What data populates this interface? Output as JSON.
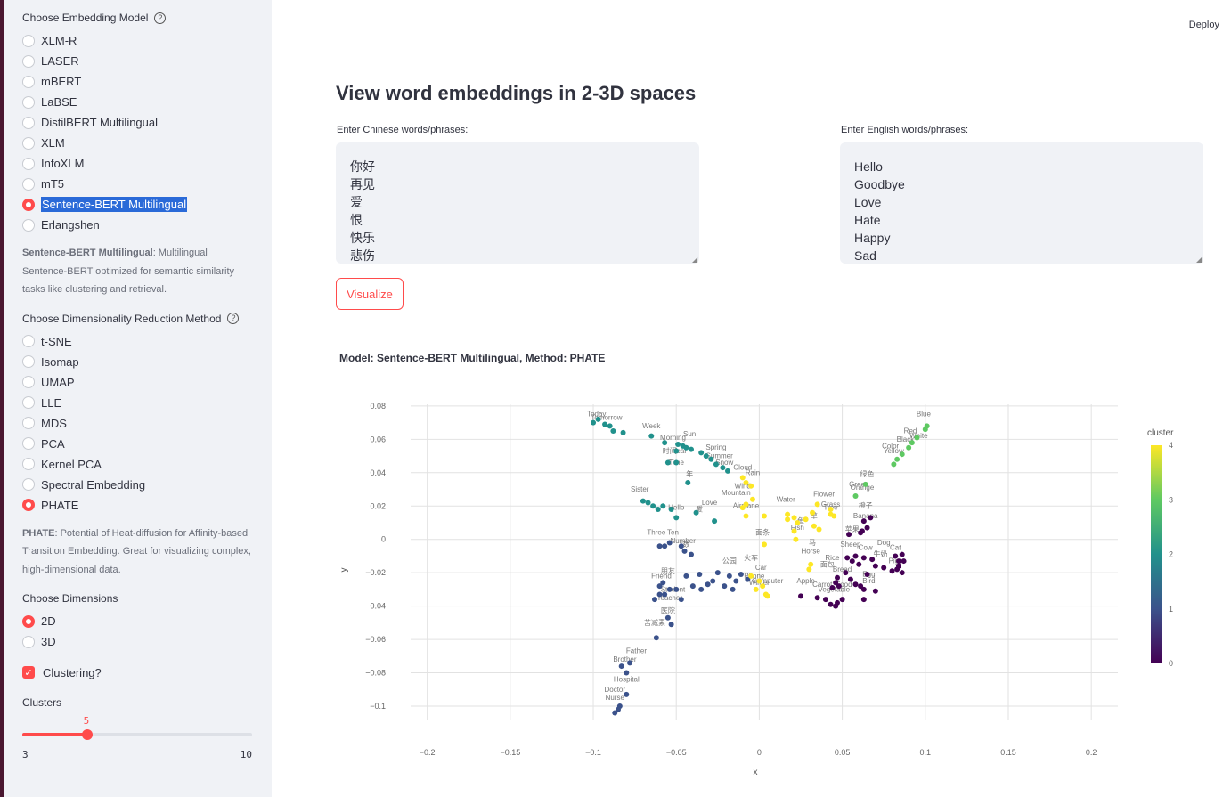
{
  "sidebar": {
    "model_label": "Choose Embedding Model",
    "models": [
      "XLM-R",
      "LASER",
      "mBERT",
      "LaBSE",
      "DistilBERT Multilingual",
      "XLM",
      "InfoXLM",
      "mT5",
      "Sentence-BERT Multilingual",
      "Erlangshen"
    ],
    "selected_model": "Sentence-BERT Multilingual",
    "model_desc_title": "Sentence-BERT Multilingual",
    "model_desc_text": ": Multilingual Sentence-BERT optimized for semantic similarity tasks like clustering and retrieval.",
    "method_label": "Choose Dimensionality Reduction Method",
    "methods": [
      "t-SNE",
      "Isomap",
      "UMAP",
      "LLE",
      "MDS",
      "PCA",
      "Kernel PCA",
      "Spectral Embedding",
      "PHATE"
    ],
    "selected_method": "PHATE",
    "method_desc_title": "PHATE",
    "method_desc_text": ": Potential of Heat-diffusion for Affinity-based Transition Embedding. Great for visualizing complex, high-dimensional data.",
    "dims_label": "Choose Dimensions",
    "dims": [
      "2D",
      "3D"
    ],
    "selected_dim": "2D",
    "clustering_label": "Clustering?",
    "clustering_checked": true,
    "clusters_label": "Clusters",
    "clusters_value": "5",
    "clusters_min": "3",
    "clusters_max": "10",
    "clusters_fraction": 0.2857
  },
  "header": {
    "deploy_label": "Deploy"
  },
  "main": {
    "title": "View word embeddings in 2-3D spaces",
    "chinese_label": "Enter Chinese words/phrases:",
    "chinese_lines": [
      "你好",
      "再见",
      "爱",
      "恨",
      "快乐",
      "悲伤"
    ],
    "english_label": "Enter English words/phrases:",
    "english_lines": [
      "Hello",
      "Goodbye",
      "Love",
      "Hate",
      "Happy",
      "Sad"
    ],
    "visualize_label": "Visualize",
    "chart_title": "Model: Sentence-BERT Multilingual, Method: PHATE"
  },
  "colors": {
    "accent": "#ff4b4b",
    "selection": "#2a6ad8"
  },
  "chart_data": {
    "type": "scatter",
    "xlabel": "x",
    "ylabel": "y",
    "xlim": [
      -0.21,
      0.216
    ],
    "ylim": [
      -0.108,
      0.081
    ],
    "xticks": [
      -0.2,
      -0.15,
      -0.1,
      -0.05,
      0,
      0.05,
      0.1,
      0.15,
      0.2
    ],
    "xtick_labels": [
      "−0.2",
      "−0.15",
      "−0.1",
      "−0.05",
      "0",
      "0.05",
      "0.1",
      "0.15",
      "0.2"
    ],
    "yticks": [
      0.08,
      0.06,
      0.04,
      0.02,
      0,
      -0.02,
      -0.04,
      -0.06,
      -0.08,
      -0.1
    ],
    "ytick_labels": [
      "0.08",
      "0.06",
      "0.04",
      "0.02",
      "0",
      "−0.02",
      "−0.04",
      "−0.06",
      "−0.08",
      "−0.1"
    ],
    "grid": true,
    "colorbar": {
      "title": "cluster",
      "min": 0,
      "max": 4,
      "ticks": [
        "4",
        "3",
        "2",
        "1",
        "0"
      ]
    },
    "clusters": [
      {
        "cluster": 0,
        "color": "#440154",
        "points": [
          [
            0.025,
            -0.034
          ],
          [
            0.035,
            -0.035
          ],
          [
            0.04,
            -0.036
          ],
          [
            0.043,
            -0.039
          ],
          [
            0.046,
            -0.04
          ],
          [
            0.047,
            -0.038
          ],
          [
            0.05,
            -0.036
          ],
          [
            0.044,
            -0.029
          ],
          [
            0.048,
            -0.028
          ],
          [
            0.046,
            -0.026
          ],
          [
            0.052,
            -0.02
          ],
          [
            0.047,
            -0.023
          ],
          [
            0.055,
            -0.024
          ],
          [
            0.058,
            -0.027
          ],
          [
            0.061,
            -0.028
          ],
          [
            0.063,
            -0.03
          ],
          [
            0.063,
            -0.036
          ],
          [
            0.07,
            -0.031
          ],
          [
            0.065,
            -0.021
          ],
          [
            0.06,
            -0.015
          ],
          [
            0.056,
            -0.013
          ],
          [
            0.053,
            -0.011
          ],
          [
            0.058,
            -0.01
          ],
          [
            0.063,
            -0.011
          ],
          [
            0.068,
            -0.012
          ],
          [
            0.07,
            -0.016
          ],
          [
            0.075,
            -0.017
          ],
          [
            0.08,
            -0.019
          ],
          [
            0.084,
            -0.016
          ],
          [
            0.082,
            -0.01
          ],
          [
            0.086,
            -0.009
          ],
          [
            0.083,
            -0.018
          ],
          [
            0.086,
            -0.02
          ],
          [
            0.084,
            -0.013
          ],
          [
            0.087,
            -0.013
          ],
          [
            0.062,
            0.005
          ],
          [
            0.065,
            0.007
          ],
          [
            0.067,
            0.013
          ],
          [
            0.063,
            0.011
          ],
          [
            0.054,
            0.003
          ],
          [
            0.061,
            0.004
          ]
        ]
      },
      {
        "cluster": 1,
        "color": "#3b528b",
        "points": [
          [
            -0.085,
            -0.102
          ],
          [
            -0.087,
            -0.104
          ],
          [
            -0.084,
            -0.1
          ],
          [
            -0.08,
            -0.093
          ],
          [
            -0.08,
            -0.08
          ],
          [
            -0.078,
            -0.074
          ],
          [
            -0.083,
            -0.076
          ],
          [
            -0.062,
            -0.059
          ],
          [
            -0.053,
            -0.051
          ],
          [
            -0.055,
            -0.047
          ],
          [
            -0.06,
            -0.033
          ],
          [
            -0.057,
            -0.033
          ],
          [
            -0.063,
            -0.036
          ],
          [
            -0.06,
            -0.028
          ],
          [
            -0.058,
            -0.026
          ],
          [
            -0.054,
            -0.03
          ],
          [
            -0.05,
            -0.03
          ],
          [
            -0.047,
            -0.036
          ],
          [
            -0.044,
            -0.022
          ],
          [
            -0.04,
            -0.028
          ],
          [
            -0.035,
            -0.03
          ],
          [
            -0.031,
            -0.027
          ],
          [
            -0.028,
            -0.025
          ],
          [
            -0.025,
            -0.02
          ],
          [
            -0.021,
            -0.028
          ],
          [
            -0.018,
            -0.022
          ],
          [
            -0.014,
            -0.025
          ],
          [
            -0.011,
            -0.021
          ],
          [
            -0.016,
            -0.03
          ],
          [
            -0.007,
            -0.024
          ],
          [
            -0.06,
            -0.004
          ],
          [
            -0.057,
            -0.004
          ],
          [
            -0.054,
            -0.002
          ],
          [
            -0.047,
            -0.004
          ],
          [
            -0.045,
            -0.007
          ],
          [
            -0.041,
            -0.009
          ],
          [
            -0.036,
            -0.021
          ]
        ]
      },
      {
        "cluster": 2,
        "color": "#21918c",
        "points": [
          [
            -0.1,
            0.07
          ],
          [
            -0.097,
            0.072
          ],
          [
            -0.093,
            0.069
          ],
          [
            -0.09,
            0.068
          ],
          [
            -0.088,
            0.065
          ],
          [
            -0.082,
            0.064
          ],
          [
            -0.065,
            0.062
          ],
          [
            -0.057,
            0.058
          ],
          [
            -0.05,
            0.053
          ],
          [
            -0.049,
            0.057
          ],
          [
            -0.046,
            0.056
          ],
          [
            -0.044,
            0.055
          ],
          [
            -0.041,
            0.054
          ],
          [
            -0.035,
            0.052
          ],
          [
            -0.032,
            0.05
          ],
          [
            -0.029,
            0.048
          ],
          [
            -0.026,
            0.045
          ],
          [
            -0.022,
            0.043
          ],
          [
            -0.019,
            0.041
          ],
          [
            -0.055,
            0.046
          ],
          [
            -0.05,
            0.046
          ],
          [
            -0.043,
            0.034
          ],
          [
            -0.07,
            0.023
          ],
          [
            -0.067,
            0.022
          ],
          [
            -0.064,
            0.02
          ],
          [
            -0.061,
            0.018
          ],
          [
            -0.058,
            0.02
          ],
          [
            -0.053,
            0.018
          ],
          [
            -0.05,
            0.013
          ],
          [
            -0.038,
            0.016
          ],
          [
            -0.027,
            0.011
          ]
        ]
      },
      {
        "cluster": 3,
        "color": "#5ec962",
        "points": [
          [
            0.081,
            0.045
          ],
          [
            0.083,
            0.048
          ],
          [
            0.086,
            0.051
          ],
          [
            0.09,
            0.055
          ],
          [
            0.092,
            0.058
          ],
          [
            0.095,
            0.061
          ],
          [
            0.1,
            0.066
          ],
          [
            0.101,
            0.068
          ],
          [
            0.064,
            0.033
          ],
          [
            0.058,
            0.026
          ]
        ]
      },
      {
        "cluster": 4,
        "color": "#fde725",
        "points": [
          [
            -0.01,
            0.037
          ],
          [
            -0.008,
            0.034
          ],
          [
            -0.005,
            0.032
          ],
          [
            -0.004,
            0.024
          ],
          [
            -0.008,
            0.021
          ],
          [
            -0.01,
            0.019
          ],
          [
            -0.008,
            0.014
          ],
          [
            0.003,
            0.014
          ],
          [
            0.017,
            0.015
          ],
          [
            0.017,
            0.012
          ],
          [
            0.021,
            0.013
          ],
          [
            0.023,
            0.01
          ],
          [
            0.028,
            0.012
          ],
          [
            0.021,
            0.005
          ],
          [
            0.033,
            0.008
          ],
          [
            0.036,
            0.006
          ],
          [
            0.032,
            0.016
          ],
          [
            0.043,
            0.015
          ],
          [
            0.045,
            0.014
          ],
          [
            0.043,
            0.018
          ],
          [
            0.035,
            0.021
          ],
          [
            0.022,
            0.0
          ],
          [
            0.003,
            -0.003
          ],
          [
            0.031,
            -0.015
          ],
          [
            0.03,
            -0.018
          ],
          [
            -0.005,
            -0.022
          ],
          [
            0.0,
            -0.025
          ],
          [
            0.002,
            -0.028
          ],
          [
            0.004,
            -0.033
          ],
          [
            0.005,
            -0.034
          ],
          [
            -0.002,
            -0.03
          ]
        ]
      }
    ],
    "labels": [
      {
        "text": "Week",
        "x": -0.065,
        "y": 0.064
      },
      {
        "text": "Year",
        "x": -0.048,
        "y": 0.049
      },
      {
        "text": "时间",
        "x": -0.054,
        "y": 0.049
      },
      {
        "text": "Time",
        "x": -0.05,
        "y": 0.042
      },
      {
        "text": "年",
        "x": -0.042,
        "y": 0.035
      },
      {
        "text": "Love",
        "x": -0.03,
        "y": 0.018
      },
      {
        "text": "爱",
        "x": -0.036,
        "y": 0.014
      },
      {
        "text": "Spring",
        "x": -0.026,
        "y": 0.051
      },
      {
        "text": "Hello",
        "x": -0.05,
        "y": 0.015
      },
      {
        "text": "Cloud",
        "x": -0.01,
        "y": 0.039
      },
      {
        "text": "Rain",
        "x": -0.004,
        "y": 0.036
      },
      {
        "text": "Wind",
        "x": -0.01,
        "y": 0.028
      },
      {
        "text": "Mountain",
        "x": -0.014,
        "y": 0.024
      },
      {
        "text": "Airplane",
        "x": -0.008,
        "y": 0.016
      },
      {
        "text": "Water",
        "x": 0.016,
        "y": 0.02
      },
      {
        "text": "Flower",
        "x": 0.039,
        "y": 0.023
      },
      {
        "text": "Grass",
        "x": 0.043,
        "y": 0.017
      },
      {
        "text": "Tree",
        "x": 0.043,
        "y": 0.015
      },
      {
        "text": "Green",
        "x": 0.06,
        "y": 0.029
      },
      {
        "text": "Orange",
        "x": 0.062,
        "y": 0.027
      },
      {
        "text": "绿色",
        "x": 0.065,
        "y": 0.035
      },
      {
        "text": "Red",
        "x": 0.091,
        "y": 0.061
      },
      {
        "text": "Yellow",
        "x": 0.081,
        "y": 0.049
      },
      {
        "text": "Color",
        "x": 0.079,
        "y": 0.052
      },
      {
        "text": "草",
        "x": 0.033,
        "y": 0.01
      },
      {
        "text": "鱼",
        "x": 0.025,
        "y": 0.007
      },
      {
        "text": "Fish",
        "x": 0.023,
        "y": 0.003
      },
      {
        "text": "橙子",
        "x": 0.064,
        "y": 0.016
      },
      {
        "text": "Banana",
        "x": 0.064,
        "y": 0.01
      },
      {
        "text": "苹果",
        "x": 0.056,
        "y": 0.002
      },
      {
        "text": "面条",
        "x": 0.002,
        "y": 0.0
      },
      {
        "text": "马",
        "x": 0.032,
        "y": -0.006
      },
      {
        "text": "Horse",
        "x": 0.031,
        "y": -0.011
      },
      {
        "text": "Sheep",
        "x": 0.055,
        "y": -0.007
      },
      {
        "text": "Cow",
        "x": 0.064,
        "y": -0.009
      },
      {
        "text": "牛奶",
        "x": 0.073,
        "y": -0.013
      },
      {
        "text": "Rice",
        "x": 0.044,
        "y": -0.015
      },
      {
        "text": "面包",
        "x": 0.041,
        "y": -0.019
      },
      {
        "text": "Bread",
        "x": 0.05,
        "y": -0.022
      },
      {
        "text": "Apple",
        "x": 0.028,
        "y": -0.029
      },
      {
        "text": "Carrot",
        "x": 0.038,
        "y": -0.031
      },
      {
        "text": "Food",
        "x": 0.051,
        "y": -0.031
      },
      {
        "text": "Vegetable",
        "x": 0.045,
        "y": -0.034
      },
      {
        "text": "Egg",
        "x": 0.066,
        "y": -0.025
      },
      {
        "text": "Bird",
        "x": 0.066,
        "y": -0.029
      },
      {
        "text": "Computer",
        "x": 0.005,
        "y": -0.029
      },
      {
        "text": "Phone",
        "x": -0.003,
        "y": -0.026
      },
      {
        "text": "火车",
        "x": -0.005,
        "y": -0.015
      },
      {
        "text": "Car",
        "x": 0.001,
        "y": -0.021
      },
      {
        "text": "公园",
        "x": -0.018,
        "y": -0.017
      },
      {
        "text": "Friend",
        "x": -0.059,
        "y": -0.026
      },
      {
        "text": "朋友",
        "x": -0.055,
        "y": -0.023
      },
      {
        "text": "Student",
        "x": -0.052,
        "y": -0.034
      },
      {
        "text": "Teacher",
        "x": -0.054,
        "y": -0.039
      },
      {
        "text": "Number",
        "x": -0.046,
        "y": -0.005
      },
      {
        "text": "数",
        "x": -0.044,
        "y": -0.007
      },
      {
        "text": "Ten",
        "x": -0.052,
        "y": 0.0
      },
      {
        "text": "Three",
        "x": -0.062,
        "y": 0.0
      },
      {
        "text": "医院",
        "x": -0.055,
        "y": -0.047
      },
      {
        "text": "苦减素",
        "x": -0.063,
        "y": -0.054
      },
      {
        "text": "Hospital",
        "x": -0.08,
        "y": -0.088
      },
      {
        "text": "Doctor",
        "x": -0.087,
        "y": -0.094
      },
      {
        "text": "Nurse",
        "x": -0.087,
        "y": -0.099
      },
      {
        "text": "Father",
        "x": -0.074,
        "y": -0.071
      },
      {
        "text": "Brother",
        "x": -0.081,
        "y": -0.076
      },
      {
        "text": "Today",
        "x": -0.098,
        "y": 0.071
      },
      {
        "text": "Tomorrow",
        "x": -0.092,
        "y": 0.069
      },
      {
        "text": "Morning",
        "x": -0.052,
        "y": 0.057
      },
      {
        "text": "Sun",
        "x": -0.042,
        "y": 0.059
      },
      {
        "text": "Sister",
        "x": -0.072,
        "y": 0.026
      },
      {
        "text": "Summer",
        "x": -0.024,
        "y": 0.046
      },
      {
        "text": "Snow",
        "x": -0.021,
        "y": 0.042
      },
      {
        "text": "Winter",
        "x": 0.0,
        "y": -0.03
      },
      {
        "text": "Dog",
        "x": 0.075,
        "y": -0.006
      },
      {
        "text": "Cat",
        "x": 0.082,
        "y": -0.009
      },
      {
        "text": "Pig",
        "x": 0.081,
        "y": -0.017
      },
      {
        "text": "Blue",
        "x": 0.099,
        "y": 0.071
      },
      {
        "text": "White",
        "x": 0.096,
        "y": 0.058
      },
      {
        "text": "Black",
        "x": 0.088,
        "y": 0.056
      }
    ]
  }
}
